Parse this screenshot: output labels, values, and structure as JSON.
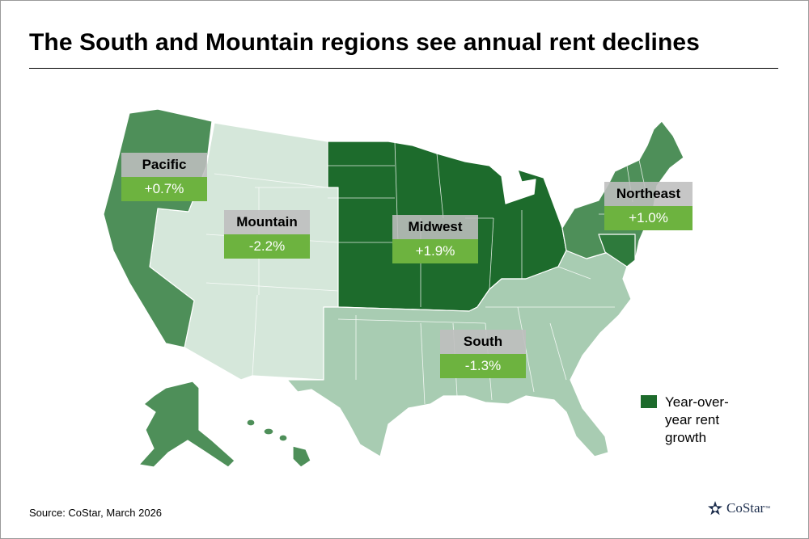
{
  "title": "The South and Mountain regions see annual rent declines",
  "regions": {
    "pacific": {
      "name": "Pacific",
      "value": "+0.7%"
    },
    "mountain": {
      "name": "Mountain",
      "value": "-2.2%"
    },
    "midwest": {
      "name": "Midwest",
      "value": "+1.9%"
    },
    "northeast": {
      "name": "Northeast",
      "value": "+1.0%"
    },
    "south": {
      "name": "South",
      "value": "-1.3%"
    }
  },
  "legend": {
    "label": "Year-over-year rent growth"
  },
  "source": "Source: CoStar, March 2026",
  "logo": {
    "text": "CoStar",
    "trademark": "™"
  },
  "colors": {
    "midwest": "#1d6b2c",
    "pacific": "#4e8f59",
    "northeast": "#4e8f59",
    "northeast_dark": "#2e7a3c",
    "south": "#a8ccb2",
    "mountain": "#d5e7da",
    "label_value_bg": "#6db33f"
  }
}
